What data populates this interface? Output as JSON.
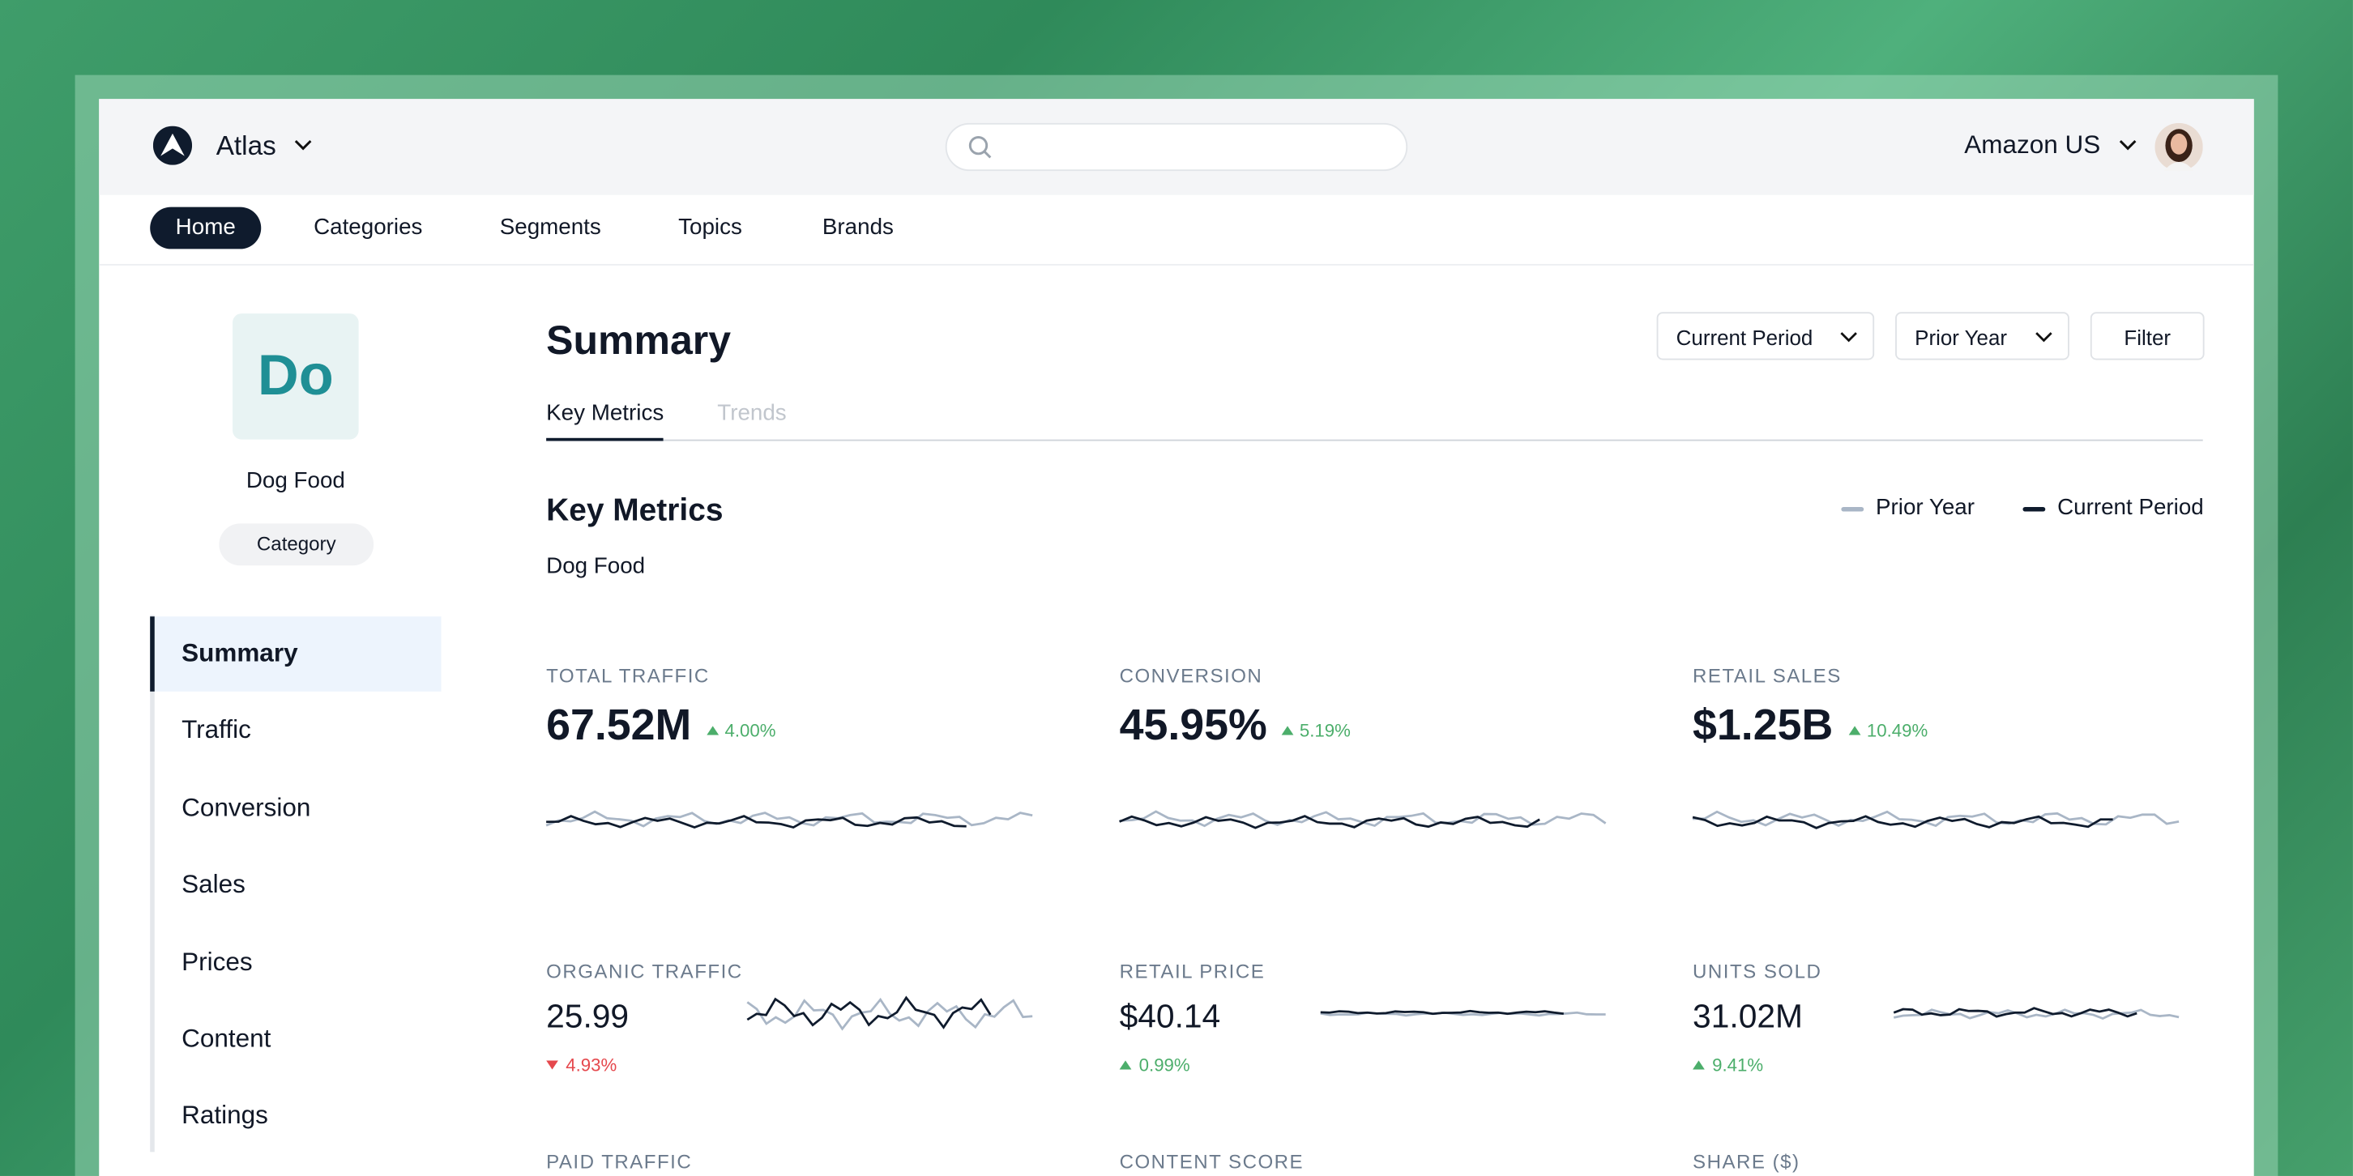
{
  "header": {
    "brand": "Atlas",
    "market": "Amazon US"
  },
  "nav": [
    "Home",
    "Categories",
    "Segments",
    "Topics",
    "Brands"
  ],
  "sidebar": {
    "avatar": "Do",
    "name": "Dog Food",
    "badge": "Category",
    "menu": [
      "Summary",
      "Traffic",
      "Conversion",
      "Sales",
      "Prices",
      "Content",
      "Ratings"
    ]
  },
  "main": {
    "title": "Summary",
    "controls": [
      "Current Period",
      "Prior Year",
      "Filter"
    ],
    "tabs": [
      "Key Metrics",
      "Trends"
    ],
    "section_title": "Key Metrics",
    "section_subtitle": "Dog Food",
    "legend": [
      "Prior Year",
      "Current Period"
    ],
    "metrics": [
      {
        "label": "TOTAL TRAFFIC",
        "value": "67.52M",
        "change": "4.00%",
        "direction": "up"
      },
      {
        "label": "CONVERSION",
        "value": "45.95%",
        "change": "5.19%",
        "direction": "up"
      },
      {
        "label": "RETAIL SALES",
        "value": "$1.25B",
        "change": "10.49%",
        "direction": "up"
      },
      {
        "label": "ORGANIC TRAFFIC",
        "value": "25.99",
        "change": "4.93%",
        "direction": "down"
      },
      {
        "label": "RETAIL PRICE",
        "value": "$40.14",
        "change": "0.99%",
        "direction": "up"
      },
      {
        "label": "UNITS SOLD",
        "value": "31.02M",
        "change": "9.41%",
        "direction": "up"
      },
      {
        "label": "PAID TRAFFIC"
      },
      {
        "label": "CONTENT SCORE"
      },
      {
        "label": "SHARE ($)"
      }
    ]
  }
}
